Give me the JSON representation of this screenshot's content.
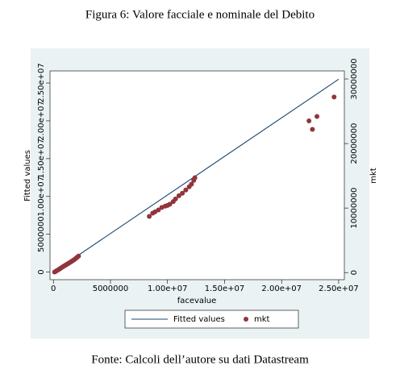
{
  "chart_data": {
    "type": "scatter",
    "title": "Figura 6: Valore facciale e nominale del Debito",
    "caption": "Fonte: Calcoli dell’autore su dati Datastream",
    "x_label": "facevalue",
    "y_label": "Fitted values",
    "y2_label": "mkt",
    "xlim": [
      -300000,
      25500000
    ],
    "xticks": [
      0,
      5000000,
      {
        "value": 10000000,
        "label": "1.00e+07"
      },
      {
        "value": 15000000,
        "label": "1.50e+07"
      },
      {
        "value": 20000000,
        "label": "2.00e+07"
      },
      {
        "value": 25000000,
        "label": "2.50e+07"
      }
    ],
    "ylim": [
      -1000000,
      26600000
    ],
    "yticks": [
      0,
      5000000,
      {
        "value": 10000000,
        "label": "1.00e+07"
      },
      {
        "value": 15000000,
        "label": "1.50e+07"
      },
      {
        "value": 20000000,
        "label": "2.00e+07"
      },
      {
        "value": 25000000,
        "label": "2.50e+07"
      }
    ],
    "y2lim": [
      -1100000,
      31250000
    ],
    "y2ticks": [
      0,
      10000000,
      20000000,
      30000000
    ],
    "grid": false,
    "legend": "bottom",
    "series": [
      {
        "name": "Fitted values",
        "color": "#1a476f",
        "mark": "line",
        "x": [
          0,
          25000000
        ],
        "values": [
          0,
          25500000
        ]
      },
      {
        "name": "mkt",
        "color": "#90353b",
        "mark": "point",
        "axis": "y2",
        "x": [
          100000,
          200000,
          300000,
          400000,
          500000,
          600000,
          700000,
          800000,
          900000,
          1000000,
          1100000,
          1200000,
          1300000,
          1400000,
          1500000,
          1600000,
          1700000,
          1800000,
          1900000,
          2000000,
          2100000,
          2200000,
          8400000,
          8700000,
          8900000,
          9200000,
          9500000,
          9800000,
          10000000,
          10200000,
          10500000,
          10700000,
          11000000,
          11300000,
          11600000,
          11900000,
          12100000,
          12300000,
          12400000,
          22400000,
          22700000,
          23100000,
          24600000
        ],
        "values": [
          80000,
          180000,
          300000,
          400000,
          520000,
          630000,
          750000,
          860000,
          970000,
          1080000,
          1190000,
          1300000,
          1400000,
          1520000,
          1620000,
          1750000,
          1850000,
          1980000,
          2100000,
          2250000,
          2400000,
          2550000,
          8700000,
          9200000,
          9400000,
          9700000,
          10100000,
          10300000,
          10400000,
          10600000,
          11000000,
          11400000,
          11900000,
          12300000,
          12800000,
          13300000,
          13700000,
          14300000,
          14700000,
          23500000,
          22200000,
          24200000,
          27200000
        ]
      }
    ]
  }
}
